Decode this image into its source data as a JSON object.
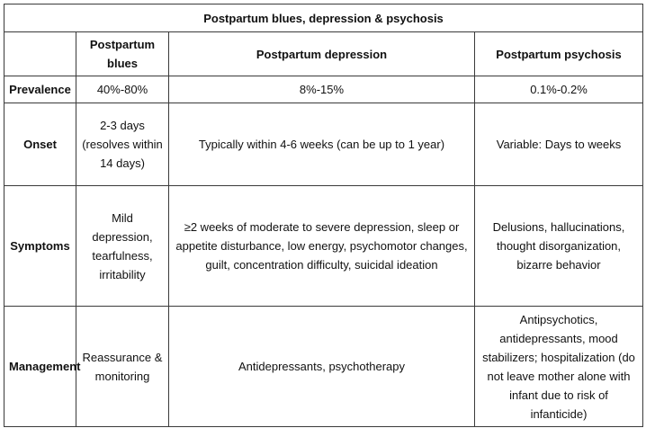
{
  "table": {
    "title": "Postpartum blues, depression & psychosis",
    "columns": [
      "",
      "Postpartum blues",
      "Postpartum depression",
      "Postpartum psychosis"
    ],
    "rows": [
      {
        "label": "Prevalence",
        "blues": "40%-80%",
        "depression": "8%-15%",
        "psychosis": "0.1%-0.2%"
      },
      {
        "label": "Onset",
        "blues": "2-3 days (resolves within 14 days)",
        "depression": "Typically within 4-6 weeks (can be up to 1 year)",
        "psychosis": "Variable: Days to  weeks"
      },
      {
        "label": "Symptoms",
        "blues": "Mild depression, tearfulness, irritability",
        "depression": "≥2 weeks of moderate to severe depression, sleep or appetite disturbance, low energy, psychomotor changes, guilt, concentration difficulty, suicidal ideation",
        "psychosis": "Delusions, hallucinations, thought disorganization, bizarre behavior"
      },
      {
        "label": "Management",
        "blues": "Reassurance & monitoring",
        "depression": "Antidepressants, psychotherapy",
        "psychosis": "Antipsychotics, antidepressants, mood stabilizers; hospitalization (do not leave mother alone with infant due to risk of infanticide)"
      }
    ]
  }
}
